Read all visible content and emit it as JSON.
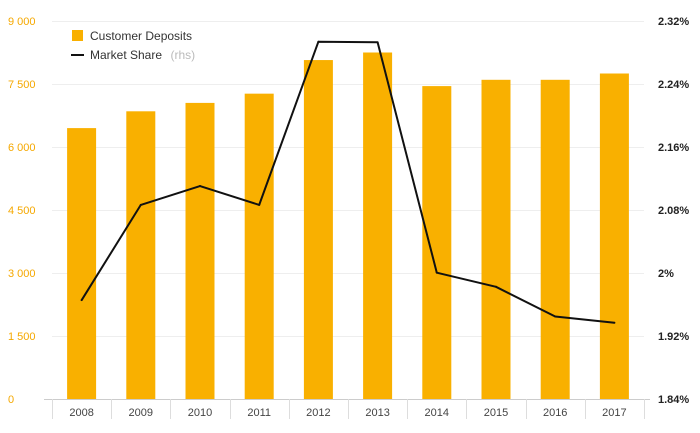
{
  "chart_data": {
    "type": "bar+line",
    "categories": [
      "2008",
      "2009",
      "2010",
      "2011",
      "2012",
      "2013",
      "2014",
      "2015",
      "2016",
      "2017"
    ],
    "series": [
      {
        "name": "Customer Deposits",
        "kind": "bar",
        "axis": "left",
        "color": "#f9b000",
        "values": [
          6450,
          6850,
          7050,
          7270,
          8070,
          8250,
          7450,
          7600,
          7600,
          7750
        ]
      },
      {
        "name": "Market Share",
        "kind": "line",
        "axis": "right",
        "color": "#111111",
        "values": [
          1.9655,
          2.0865,
          2.1104,
          2.0865,
          2.2937,
          2.2929,
          2.0004,
          1.9825,
          1.9447,
          1.9368
        ]
      }
    ],
    "left_axis": {
      "ylim": [
        0,
        9000
      ],
      "ticks": [
        0,
        1500,
        3000,
        4500,
        6000,
        7500,
        9000
      ],
      "tick_labels": [
        "0",
        "1 500",
        "3 000",
        "4 500",
        "6 000",
        "7 500",
        "9 000"
      ],
      "color": "#f5a800"
    },
    "right_axis": {
      "ylim": [
        1.84,
        2.32
      ],
      "ticks": [
        1.84,
        1.92,
        2.0,
        2.08,
        2.16,
        2.24,
        2.32
      ],
      "tick_labels": [
        "1.84%",
        "1.92%",
        "2%",
        "2.08%",
        "2.16%",
        "2.24%",
        "2.32%"
      ]
    },
    "legend": {
      "position": "top-left",
      "items": [
        {
          "label": "Customer Deposits",
          "note": ""
        },
        {
          "label": "Market Share",
          "note": "(rhs)"
        }
      ]
    },
    "grid": true
  }
}
